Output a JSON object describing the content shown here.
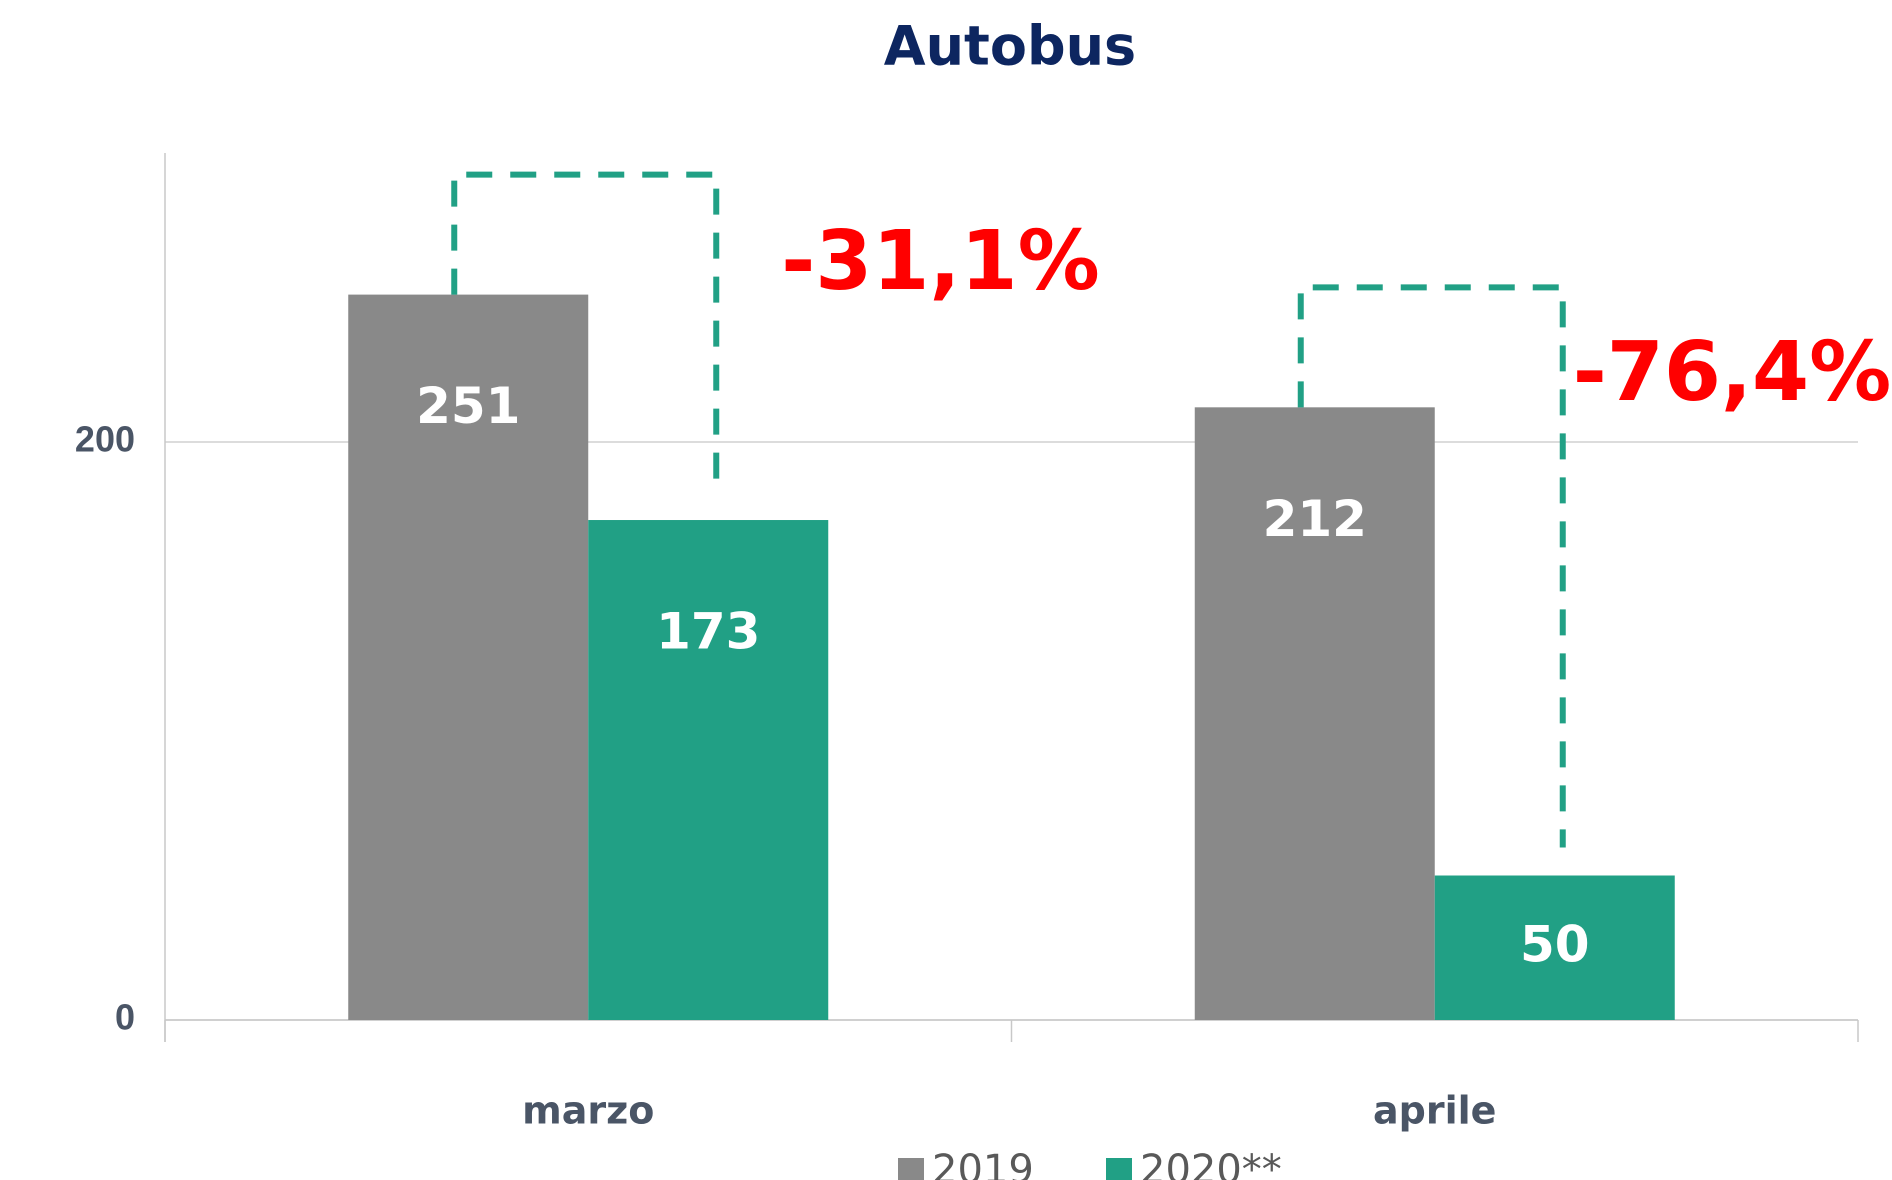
{
  "chart_data": {
    "type": "bar",
    "title": "Autobus",
    "categories": [
      "marzo",
      "aprile"
    ],
    "series": [
      {
        "name": "2019",
        "color": "#898989",
        "values": [
          251,
          212
        ]
      },
      {
        "name": "2020**",
        "color": "#21a085",
        "values": [
          173,
          50
        ]
      }
    ],
    "annotations": [
      "-31,1%",
      "-76,4%"
    ],
    "annotation_color": "#ff0000",
    "bracket_color": "#21a085",
    "ylim": [
      0,
      300
    ],
    "yticks": [
      0,
      200
    ],
    "grid": true
  }
}
